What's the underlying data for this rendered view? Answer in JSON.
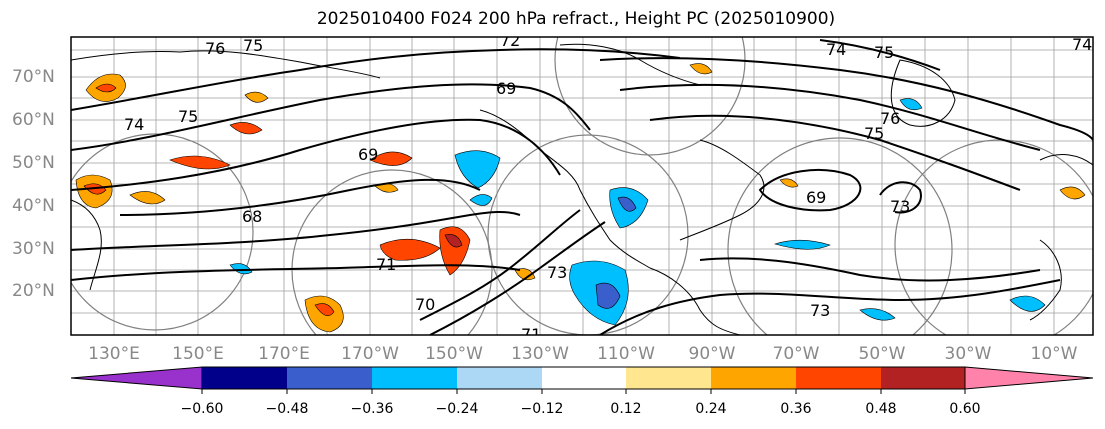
{
  "map": {
    "title": "2025010400 F024 200 hPa refract., Height PC (2025010900)",
    "lat_labels": [
      "70°N",
      "60°N",
      "50°N",
      "40°N",
      "30°N",
      "20°N"
    ],
    "lon_labels": [
      "130°E",
      "150°E",
      "170°E",
      "170°W",
      "150°W",
      "130°W",
      "110°W",
      "90°W",
      "70°W",
      "50°W",
      "30°W",
      "10°W"
    ],
    "contour_labels": [
      "76",
      "75",
      "72",
      "69",
      "75",
      "74",
      "75",
      "76",
      "75",
      "74",
      "68",
      "69",
      "73",
      "70",
      "71",
      "73",
      "74",
      "71",
      "69",
      "73"
    ],
    "colors": {
      "grid": "#a0a0a0",
      "coast": "#000000",
      "contour": "#000000",
      "label_gray": "#888888"
    }
  },
  "colorbar": {
    "ticks": [
      "−0.60",
      "−0.48",
      "−0.36",
      "−0.24",
      "−0.12",
      "0.12",
      "0.24",
      "0.36",
      "0.48",
      "0.60"
    ],
    "bins": [
      {
        "color": "#9932cc"
      },
      {
        "color": "#00008b"
      },
      {
        "color": "#3a5fcd"
      },
      {
        "color": "#00bfff"
      },
      {
        "color": "#add8f5"
      },
      {
        "color": "#ffffff"
      },
      {
        "color": "#ffe68f"
      },
      {
        "color": "#ffa500"
      },
      {
        "color": "#ff4500"
      },
      {
        "color": "#b22222"
      },
      {
        "color": "#ff82ab"
      }
    ]
  }
}
